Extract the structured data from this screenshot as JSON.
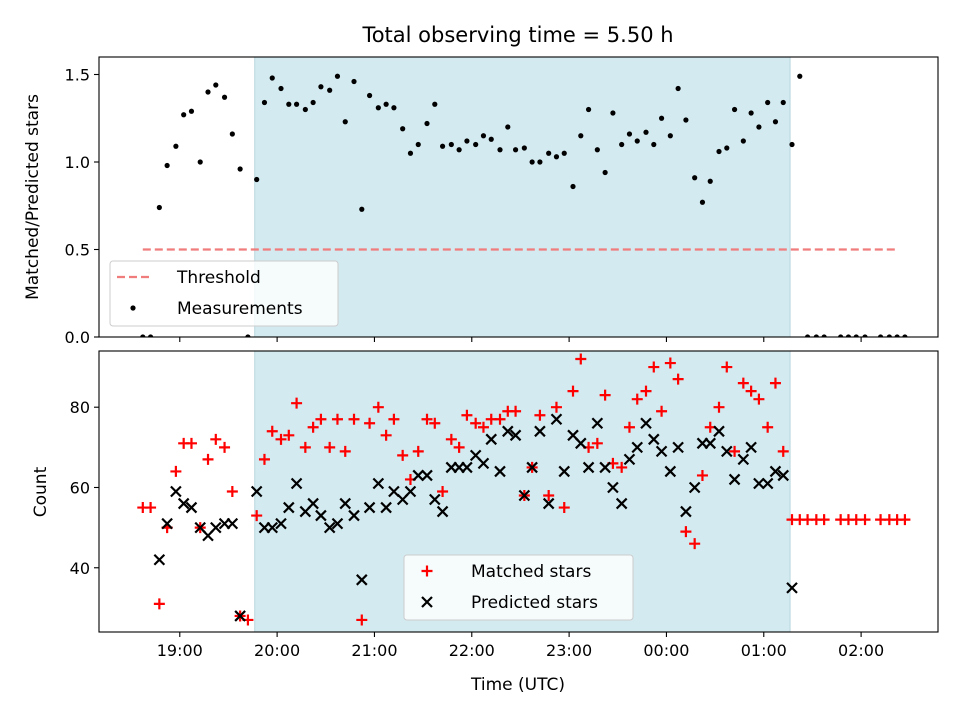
{
  "chart_data": [
    {
      "type": "scatter",
      "title": "Total observing time = 5.50 h",
      "xlabel": "",
      "ylabel": "Matched/Predicted stars",
      "xlim": [
        -0.83,
        7.79
      ],
      "ylim": [
        0,
        1.6
      ],
      "yticks": [
        0.0,
        0.5,
        1.0,
        1.5
      ],
      "ytick_labels": [
        "0.0",
        "0.5",
        "1.0",
        "1.5"
      ],
      "xticks": [
        0,
        1,
        2,
        3,
        4,
        5,
        6,
        7
      ],
      "observing_window": {
        "start": 0.77,
        "end": 6.27,
        "color": "#d3eaf0"
      },
      "threshold": {
        "name": "Threshold",
        "value": 0.5,
        "x_range": [
          -0.38,
          7.35
        ],
        "color": "#f07c7c",
        "style": "dashed"
      },
      "legend": {
        "position": "lower-left",
        "entries": [
          "Threshold",
          "Measurements"
        ]
      },
      "series": [
        {
          "name": "Measurements",
          "color": "#000000",
          "marker": "dot",
          "points": [
            [
              -0.38,
              0
            ],
            [
              -0.3,
              0
            ],
            [
              -0.21,
              0.74
            ],
            [
              -0.13,
              0.98
            ],
            [
              -0.04,
              1.09
            ],
            [
              0.04,
              1.27
            ],
            [
              0.12,
              1.29
            ],
            [
              0.21,
              1.0
            ],
            [
              0.29,
              1.4
            ],
            [
              0.37,
              1.44
            ],
            [
              0.46,
              1.37
            ],
            [
              0.54,
              1.16
            ],
            [
              0.62,
              0.96
            ],
            [
              0.7,
              0
            ],
            [
              0.79,
              0.9
            ],
            [
              0.87,
              1.34
            ],
            [
              0.95,
              1.48
            ],
            [
              1.04,
              1.42
            ],
            [
              1.12,
              1.33
            ],
            [
              1.2,
              1.33
            ],
            [
              1.29,
              1.3
            ],
            [
              1.37,
              1.34
            ],
            [
              1.45,
              1.43
            ],
            [
              1.54,
              1.41
            ],
            [
              1.62,
              1.49
            ],
            [
              1.7,
              1.23
            ],
            [
              1.79,
              1.46
            ],
            [
              1.87,
              0.73
            ],
            [
              1.95,
              1.38
            ],
            [
              2.04,
              1.31
            ],
            [
              2.12,
              1.33
            ],
            [
              2.2,
              1.31
            ],
            [
              2.29,
              1.19
            ],
            [
              2.37,
              1.05
            ],
            [
              2.45,
              1.1
            ],
            [
              2.54,
              1.22
            ],
            [
              2.62,
              1.33
            ],
            [
              2.7,
              1.09
            ],
            [
              2.79,
              1.1
            ],
            [
              2.87,
              1.07
            ],
            [
              2.95,
              1.12
            ],
            [
              3.04,
              1.1
            ],
            [
              3.12,
              1.15
            ],
            [
              3.2,
              1.13
            ],
            [
              3.29,
              1.07
            ],
            [
              3.37,
              1.2
            ],
            [
              3.45,
              1.07
            ],
            [
              3.54,
              1.08
            ],
            [
              3.62,
              1.0
            ],
            [
              3.7,
              1.0
            ],
            [
              3.79,
              1.05
            ],
            [
              3.87,
              1.03
            ],
            [
              3.95,
              1.05
            ],
            [
              4.04,
              0.86
            ],
            [
              4.12,
              1.15
            ],
            [
              4.2,
              1.3
            ],
            [
              4.29,
              1.07
            ],
            [
              4.37,
              0.94
            ],
            [
              4.45,
              1.28
            ],
            [
              4.54,
              1.1
            ],
            [
              4.62,
              1.16
            ],
            [
              4.7,
              1.12
            ],
            [
              4.79,
              1.17
            ],
            [
              4.87,
              1.1
            ],
            [
              4.95,
              1.25
            ],
            [
              5.04,
              1.15
            ],
            [
              5.12,
              1.42
            ],
            [
              5.2,
              1.24
            ],
            [
              5.29,
              0.91
            ],
            [
              5.37,
              0.77
            ],
            [
              5.45,
              0.89
            ],
            [
              5.54,
              1.06
            ],
            [
              5.62,
              1.08
            ],
            [
              5.7,
              1.3
            ],
            [
              5.79,
              1.12
            ],
            [
              5.87,
              1.28
            ],
            [
              5.95,
              1.2
            ],
            [
              6.04,
              1.34
            ],
            [
              6.12,
              1.23
            ],
            [
              6.2,
              1.34
            ],
            [
              6.29,
              1.1
            ],
            [
              6.37,
              1.49
            ],
            [
              6.45,
              0
            ],
            [
              6.54,
              0
            ],
            [
              6.62,
              0
            ],
            [
              6.79,
              0
            ],
            [
              6.87,
              0
            ],
            [
              6.95,
              0
            ],
            [
              7.04,
              0
            ],
            [
              7.2,
              0
            ],
            [
              7.29,
              0
            ],
            [
              7.37,
              0
            ],
            [
              7.45,
              0
            ]
          ]
        }
      ]
    },
    {
      "type": "scatter",
      "title": "",
      "xlabel": "Time (UTC)",
      "ylabel": "Count",
      "xlim": [
        -0.83,
        7.79
      ],
      "ylim": [
        24,
        94
      ],
      "yticks": [
        40,
        60,
        80
      ],
      "ytick_labels": [
        "40",
        "60",
        "80"
      ],
      "xticks": [
        0,
        1,
        2,
        3,
        4,
        5,
        6,
        7
      ],
      "xtick_labels": [
        "19:00",
        "20:00",
        "21:00",
        "22:00",
        "23:00",
        "00:00",
        "01:00",
        "02:00"
      ],
      "observing_window": {
        "start": 0.77,
        "end": 6.27,
        "color": "#d3eaf0"
      },
      "legend": {
        "position": "lower-center",
        "entries": [
          "Matched stars",
          "Predicted stars"
        ]
      },
      "series": [
        {
          "name": "Matched stars",
          "color": "#ff0000",
          "marker": "plus",
          "points": [
            [
              -0.38,
              55
            ],
            [
              -0.3,
              55
            ],
            [
              -0.21,
              31
            ],
            [
              -0.13,
              50
            ],
            [
              -0.04,
              64
            ],
            [
              0.04,
              71
            ],
            [
              0.12,
              71
            ],
            [
              0.21,
              50
            ],
            [
              0.29,
              67
            ],
            [
              0.37,
              72
            ],
            [
              0.46,
              70
            ],
            [
              0.54,
              59
            ],
            [
              0.62,
              28
            ],
            [
              0.7,
              27
            ],
            [
              0.79,
              53
            ],
            [
              0.87,
              67
            ],
            [
              0.95,
              74
            ],
            [
              1.04,
              72
            ],
            [
              1.12,
              73
            ],
            [
              1.2,
              81
            ],
            [
              1.29,
              70
            ],
            [
              1.37,
              75
            ],
            [
              1.45,
              77
            ],
            [
              1.54,
              70
            ],
            [
              1.62,
              77
            ],
            [
              1.7,
              69
            ],
            [
              1.79,
              77
            ],
            [
              1.87,
              27
            ],
            [
              1.95,
              76
            ],
            [
              2.04,
              80
            ],
            [
              2.12,
              73
            ],
            [
              2.2,
              77
            ],
            [
              2.29,
              68
            ],
            [
              2.37,
              62
            ],
            [
              2.45,
              69
            ],
            [
              2.54,
              77
            ],
            [
              2.62,
              76
            ],
            [
              2.7,
              59
            ],
            [
              2.79,
              72
            ],
            [
              2.87,
              70
            ],
            [
              2.95,
              78
            ],
            [
              3.04,
              76
            ],
            [
              3.12,
              75
            ],
            [
              3.2,
              77
            ],
            [
              3.29,
              77
            ],
            [
              3.37,
              79
            ],
            [
              3.45,
              79
            ],
            [
              3.54,
              58
            ],
            [
              3.62,
              65
            ],
            [
              3.7,
              78
            ],
            [
              3.79,
              58
            ],
            [
              3.87,
              80
            ],
            [
              3.95,
              55
            ],
            [
              4.04,
              84
            ],
            [
              4.12,
              92
            ],
            [
              4.2,
              70
            ],
            [
              4.29,
              71
            ],
            [
              4.37,
              83
            ],
            [
              4.45,
              66
            ],
            [
              4.54,
              65
            ],
            [
              4.62,
              75
            ],
            [
              4.7,
              82
            ],
            [
              4.79,
              84
            ],
            [
              4.87,
              90
            ],
            [
              4.95,
              79
            ],
            [
              5.04,
              91
            ],
            [
              5.12,
              87
            ],
            [
              5.2,
              49
            ],
            [
              5.29,
              46
            ],
            [
              5.37,
              63
            ],
            [
              5.45,
              75
            ],
            [
              5.54,
              80
            ],
            [
              5.62,
              90
            ],
            [
              5.7,
              69
            ],
            [
              5.79,
              86
            ],
            [
              5.87,
              84
            ],
            [
              5.95,
              82
            ],
            [
              6.04,
              75
            ],
            [
              6.12,
              86
            ],
            [
              6.2,
              69
            ],
            [
              6.29,
              52
            ],
            [
              6.37,
              52
            ],
            [
              6.45,
              52
            ],
            [
              6.54,
              52
            ],
            [
              6.62,
              52
            ],
            [
              6.79,
              52
            ],
            [
              6.87,
              52
            ],
            [
              6.95,
              52
            ],
            [
              7.04,
              52
            ],
            [
              7.2,
              52
            ],
            [
              7.29,
              52
            ],
            [
              7.37,
              52
            ],
            [
              7.45,
              52
            ]
          ]
        },
        {
          "name": "Predicted stars",
          "color": "#000000",
          "marker": "x",
          "points": [
            [
              -0.21,
              42
            ],
            [
              -0.13,
              51
            ],
            [
              -0.04,
              59
            ],
            [
              0.04,
              56
            ],
            [
              0.12,
              55
            ],
            [
              0.21,
              50
            ],
            [
              0.29,
              48
            ],
            [
              0.37,
              50
            ],
            [
              0.46,
              51
            ],
            [
              0.54,
              51
            ],
            [
              0.62,
              28
            ],
            [
              0.79,
              59
            ],
            [
              0.87,
              50
            ],
            [
              0.95,
              50
            ],
            [
              1.04,
              51
            ],
            [
              1.12,
              55
            ],
            [
              1.2,
              61
            ],
            [
              1.29,
              54
            ],
            [
              1.37,
              56
            ],
            [
              1.45,
              53
            ],
            [
              1.54,
              50
            ],
            [
              1.62,
              51
            ],
            [
              1.7,
              56
            ],
            [
              1.79,
              53
            ],
            [
              1.87,
              37
            ],
            [
              1.95,
              55
            ],
            [
              2.04,
              61
            ],
            [
              2.12,
              55
            ],
            [
              2.2,
              59
            ],
            [
              2.29,
              57
            ],
            [
              2.37,
              59
            ],
            [
              2.45,
              63
            ],
            [
              2.54,
              63
            ],
            [
              2.62,
              57
            ],
            [
              2.7,
              54
            ],
            [
              2.79,
              65
            ],
            [
              2.87,
              65
            ],
            [
              2.95,
              65
            ],
            [
              3.04,
              68
            ],
            [
              3.12,
              66
            ],
            [
              3.2,
              72
            ],
            [
              3.29,
              64
            ],
            [
              3.37,
              74
            ],
            [
              3.45,
              73
            ],
            [
              3.54,
              58
            ],
            [
              3.62,
              65
            ],
            [
              3.7,
              74
            ],
            [
              3.79,
              56
            ],
            [
              3.87,
              77
            ],
            [
              3.95,
              64
            ],
            [
              4.04,
              73
            ],
            [
              4.12,
              71
            ],
            [
              4.2,
              65
            ],
            [
              4.29,
              76
            ],
            [
              4.37,
              65
            ],
            [
              4.45,
              60
            ],
            [
              4.54,
              56
            ],
            [
              4.62,
              67
            ],
            [
              4.7,
              70
            ],
            [
              4.79,
              76
            ],
            [
              4.87,
              72
            ],
            [
              4.95,
              69
            ],
            [
              5.04,
              64
            ],
            [
              5.12,
              70
            ],
            [
              5.2,
              54
            ],
            [
              5.29,
              60
            ],
            [
              5.37,
              71
            ],
            [
              5.45,
              71
            ],
            [
              5.54,
              74
            ],
            [
              5.62,
              69
            ],
            [
              5.7,
              62
            ],
            [
              5.79,
              67
            ],
            [
              5.87,
              70
            ],
            [
              5.95,
              61
            ],
            [
              6.04,
              61
            ],
            [
              6.12,
              64
            ],
            [
              6.2,
              63
            ],
            [
              6.29,
              35
            ]
          ]
        }
      ]
    }
  ]
}
